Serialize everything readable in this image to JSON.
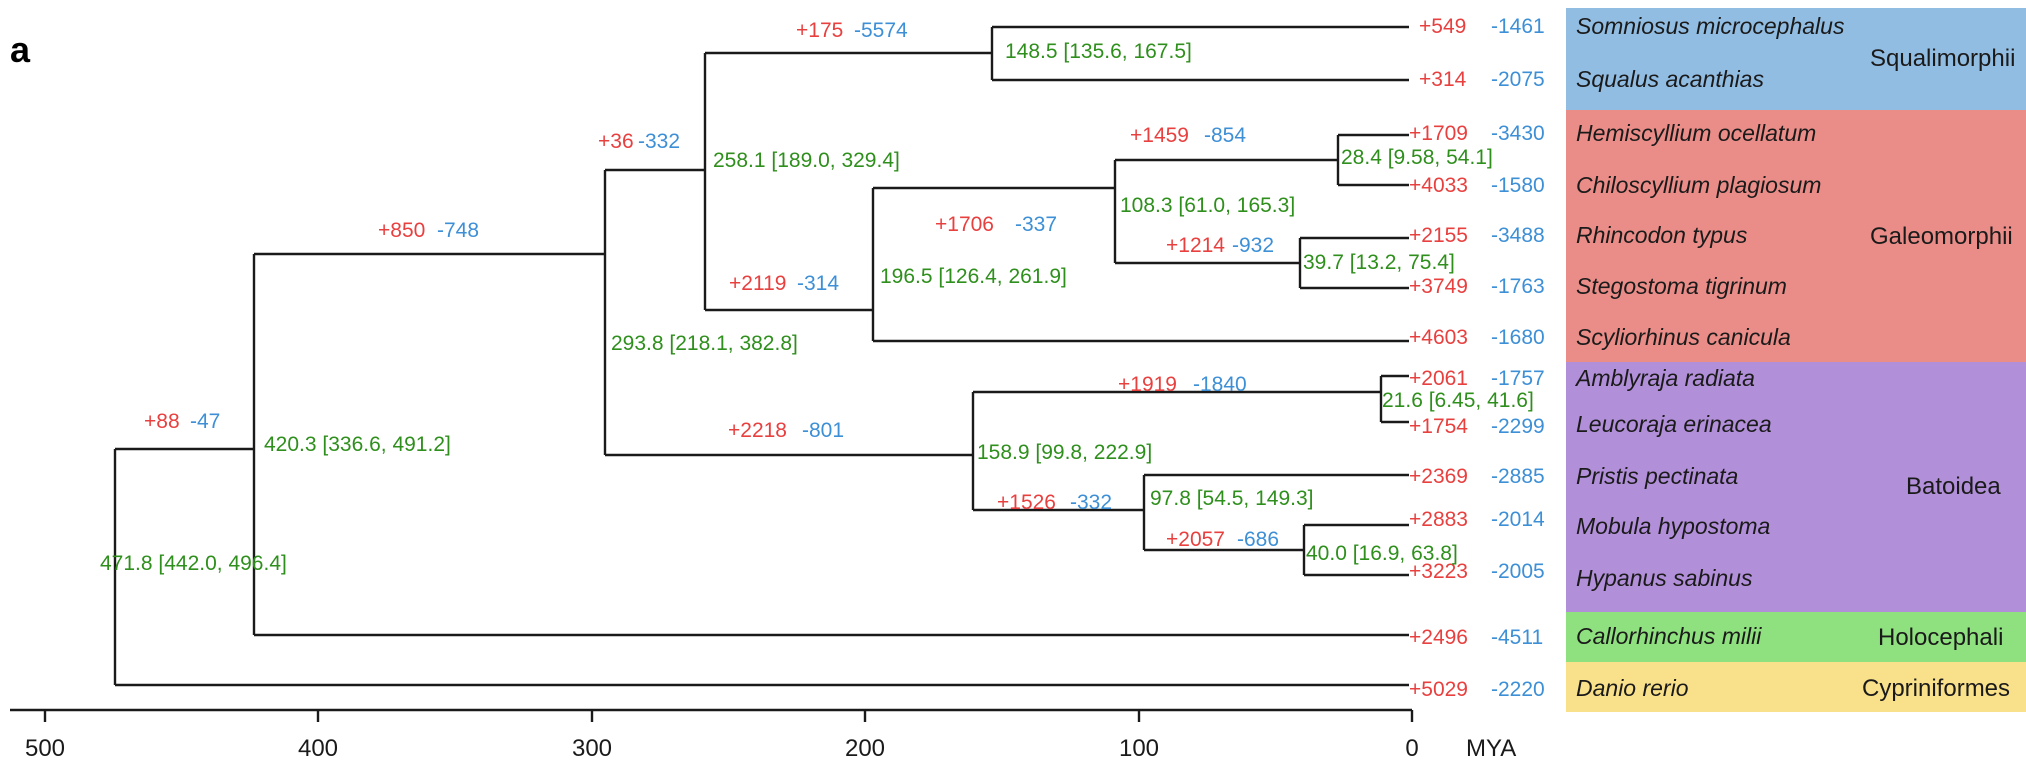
{
  "figure": {
    "panel_label": "a",
    "axis": {
      "unit": "MYA",
      "ticks": [
        "500",
        "400",
        "300",
        "200",
        "100",
        "0"
      ]
    }
  },
  "tips": [
    {
      "species": "Somniosus microcephalus",
      "gain": "+549",
      "loss": "-1461"
    },
    {
      "species": "Squalus acanthias",
      "gain": "+314",
      "loss": "-2075"
    },
    {
      "species": "Hemiscyllium ocellatum",
      "gain": "+1709",
      "loss": "-3430"
    },
    {
      "species": "Chiloscyllium plagiosum",
      "gain": "+4033",
      "loss": "-1580"
    },
    {
      "species": "Rhincodon typus",
      "gain": "+2155",
      "loss": "-3488"
    },
    {
      "species": "Stegostoma tigrinum",
      "gain": "+3749",
      "loss": "-1763"
    },
    {
      "species": "Scyliorhinus canicula",
      "gain": "+4603",
      "loss": "-1680"
    },
    {
      "species": "Amblyraja radiata",
      "gain": "+2061",
      "loss": "-1757"
    },
    {
      "species": "Leucoraja erinacea",
      "gain": "+1754",
      "loss": "-2299"
    },
    {
      "species": "Pristis pectinata",
      "gain": "+2369",
      "loss": "-2885"
    },
    {
      "species": "Mobula hypostoma",
      "gain": "+2883",
      "loss": "-2014"
    },
    {
      "species": "Hypanus sabinus",
      "gain": "+3223",
      "loss": "-2005"
    },
    {
      "species": "Callorhinchus milii",
      "gain": "+2496",
      "loss": "-4511"
    },
    {
      "species": "Danio rerio",
      "gain": "+5029",
      "loss": "-2220"
    }
  ],
  "clades": [
    {
      "name": "Squalimorphii",
      "color": "#92bde3"
    },
    {
      "name": "Galeomorphii",
      "color": "#ea8d88"
    },
    {
      "name": "Batoidea",
      "color": "#b28fd9"
    },
    {
      "name": "Holocephali",
      "color": "#8fe07f"
    },
    {
      "name": "Cypriniformes",
      "color": "#f9e08a"
    }
  ],
  "nodes": [
    {
      "id": "root",
      "age": "471.8 [442.0, 496.4]"
    },
    {
      "id": "chondrich",
      "age": "420.3 [336.6, 491.2]",
      "gain": "+88",
      "loss": "-47"
    },
    {
      "id": "elasmo",
      "age": "293.8 [218.1, 382.8]",
      "gain": "+850",
      "loss": "-748"
    },
    {
      "id": "selachii",
      "age": "258.1 [189.0, 329.4]",
      "gain": "+36",
      "loss": "-332"
    },
    {
      "id": "squalimorphii",
      "age": "148.5 [135.6, 167.5]",
      "gain": "+175",
      "loss": "-5574"
    },
    {
      "id": "galeomorphii",
      "age": "196.5 [126.4, 261.9]",
      "gain": "+2119",
      "loss": "-314"
    },
    {
      "id": "orectolob",
      "age": "108.3 [61.0, 165.3]",
      "gain": "+1706",
      "loss": "-337"
    },
    {
      "id": "hemi_chilo",
      "age": "28.4 [9.58, 54.1]",
      "gain": "+1459",
      "loss": "-854"
    },
    {
      "id": "rhin_steg",
      "age": "39.7 [13.2, 75.4]",
      "gain": "+1214",
      "loss": "-932"
    },
    {
      "id": "batoidea",
      "age": "158.9 [99.8, 222.9]",
      "gain": "+2218",
      "loss": "-801"
    },
    {
      "id": "rajidae",
      "age": "21.6 [6.45, 41.6]",
      "gain": "+1919",
      "loss": "-1840"
    },
    {
      "id": "myliob",
      "age": "97.8 [54.5, 149.3]",
      "gain": "+1526",
      "loss": "-332"
    },
    {
      "id": "mob_hyp",
      "age": "40.0 [16.9, 63.8]",
      "gain": "+2057",
      "loss": "-686"
    }
  ]
}
